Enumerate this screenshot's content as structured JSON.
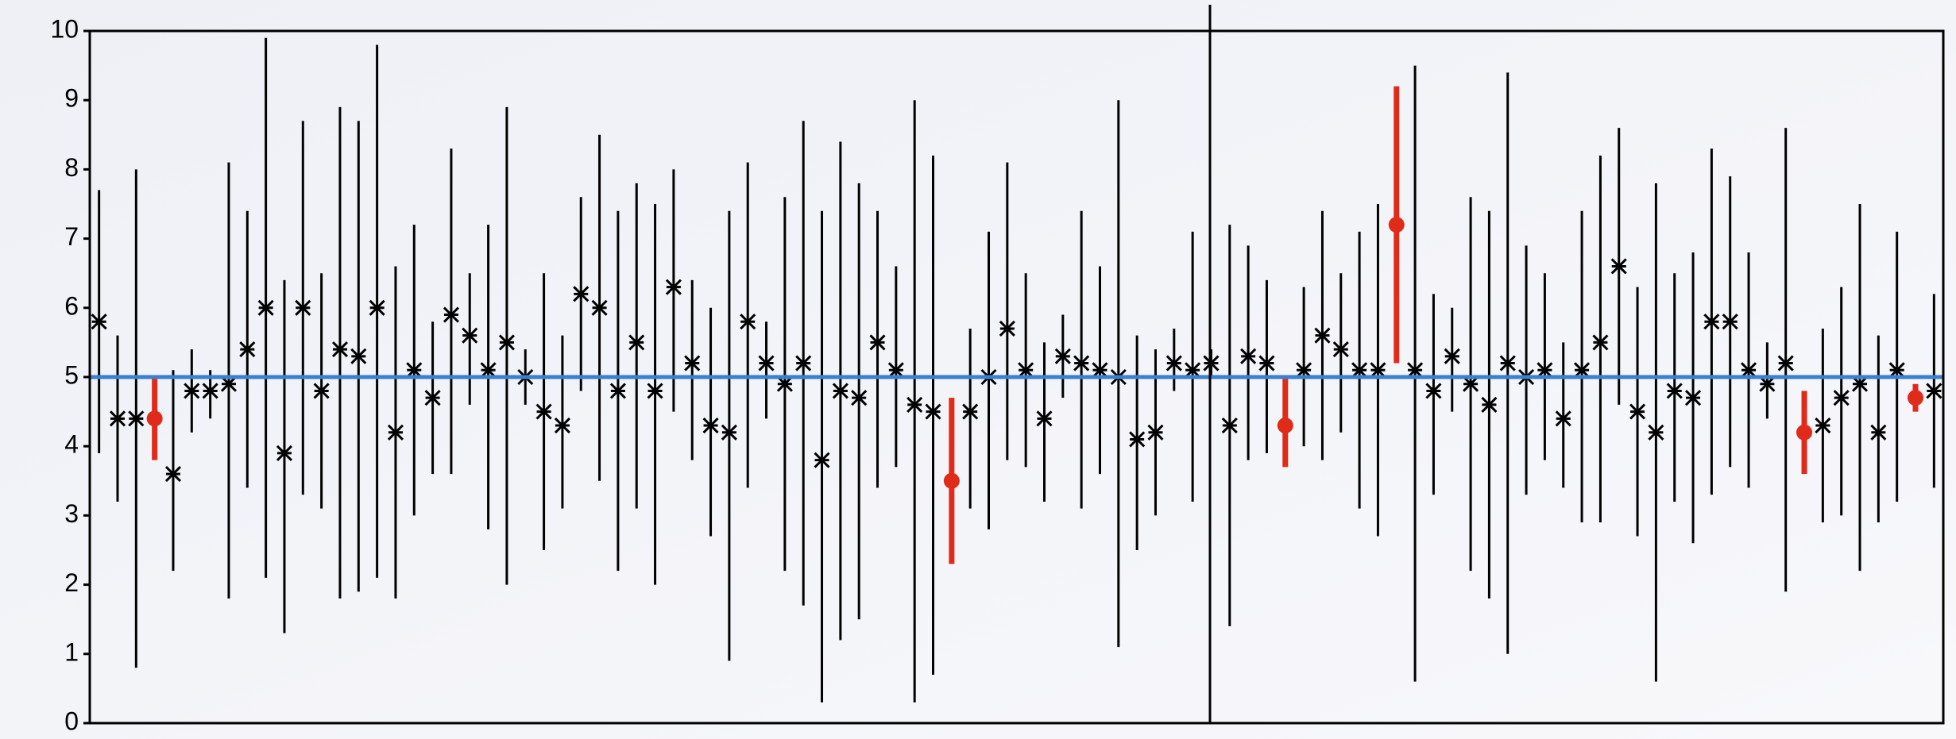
{
  "chart_data": {
    "type": "errorbar",
    "ylim": [
      0,
      10
    ],
    "yticks": [
      0,
      1,
      2,
      3,
      4,
      5,
      6,
      7,
      8,
      9,
      10
    ],
    "reference_line": {
      "value": 5,
      "color": "#3a7fd0"
    },
    "series": [
      {
        "color": "#000000",
        "values": [
          5.8,
          4.4,
          4.4,
          4.4,
          3.6,
          4.8,
          4.8,
          4.9,
          5.4,
          6.0,
          3.9,
          6.0,
          4.8,
          5.4,
          5.3,
          6.0,
          4.2,
          5.1,
          4.7,
          5.9,
          5.6,
          5.1,
          5.5,
          5.0,
          4.5,
          4.3,
          6.2,
          6.0,
          4.8,
          5.5,
          4.8,
          6.3,
          5.2,
          4.3,
          4.2,
          5.8,
          5.2,
          4.9,
          5.2,
          3.8,
          4.8,
          4.7,
          5.5,
          5.1,
          4.6,
          4.5,
          3.5,
          4.5,
          5.0,
          5.7,
          5.1,
          4.4,
          5.3,
          5.2,
          5.1,
          5.0,
          4.1,
          4.2,
          5.2,
          5.1,
          5.2,
          4.3,
          5.3,
          5.2,
          4.3,
          5.1,
          5.6,
          5.4,
          5.1,
          5.1,
          7.2,
          5.1,
          4.8,
          5.3,
          4.9,
          4.6,
          5.2,
          5.0,
          5.1,
          4.4,
          5.1,
          5.5,
          6.6,
          4.5,
          4.2,
          4.8,
          4.7,
          5.8,
          5.8,
          5.1,
          4.9,
          5.2,
          4.2,
          4.3,
          4.7,
          4.9,
          4.2,
          5.1,
          4.7,
          4.8
        ],
        "lower": [
          3.9,
          3.2,
          0.8,
          3.8,
          2.2,
          4.2,
          4.4,
          1.8,
          3.4,
          2.1,
          1.3,
          3.3,
          3.1,
          1.8,
          1.9,
          2.1,
          1.8,
          3.0,
          3.6,
          3.6,
          4.6,
          2.8,
          2.0,
          4.6,
          2.5,
          3.1,
          4.8,
          3.5,
          2.2,
          3.1,
          2.0,
          4.5,
          3.8,
          2.7,
          0.9,
          3.4,
          4.4,
          2.2,
          1.7,
          0.3,
          1.2,
          1.5,
          3.4,
          3.7,
          0.3,
          0.7,
          2.3,
          3.1,
          2.8,
          3.8,
          3.7,
          3.2,
          4.7,
          3.1,
          3.6,
          1.1,
          2.5,
          3.0,
          4.8,
          3.2,
          5.0,
          1.4,
          3.8,
          3.9,
          3.7,
          4.0,
          3.8,
          4.2,
          3.1,
          2.7,
          5.2,
          0.6,
          3.3,
          4.5,
          2.2,
          1.8,
          1.0,
          3.3,
          3.8,
          3.4,
          2.9,
          2.9,
          4.6,
          2.7,
          0.6,
          3.2,
          2.6,
          3.3,
          3.7,
          3.4,
          4.4,
          1.9,
          3.6,
          2.9,
          3.0,
          2.2,
          2.9,
          3.2,
          4.5,
          3.4
        ],
        "upper": [
          7.7,
          5.6,
          8.0,
          5.0,
          5.1,
          5.4,
          5.1,
          8.1,
          7.4,
          9.9,
          6.4,
          8.7,
          6.5,
          8.9,
          8.7,
          9.8,
          6.6,
          7.2,
          5.8,
          8.3,
          6.5,
          7.2,
          8.9,
          5.4,
          6.5,
          5.6,
          7.6,
          8.5,
          7.4,
          7.8,
          7.5,
          8.0,
          6.4,
          6.0,
          7.4,
          8.1,
          5.8,
          7.6,
          8.7,
          7.4,
          8.4,
          7.8,
          7.4,
          6.6,
          9.0,
          8.2,
          4.7,
          5.7,
          7.1,
          8.1,
          6.5,
          5.5,
          5.9,
          7.4,
          6.6,
          9.0,
          5.6,
          5.4,
          5.7,
          7.1,
          5.4,
          7.2,
          6.9,
          6.4,
          5.0,
          6.3,
          7.4,
          6.5,
          7.1,
          7.5,
          9.2,
          9.5,
          6.2,
          6.0,
          7.6,
          7.4,
          9.4,
          6.9,
          6.5,
          5.5,
          7.4,
          8.2,
          8.6,
          6.3,
          7.8,
          6.5,
          6.8,
          8.3,
          7.9,
          6.8,
          5.5,
          8.6,
          4.8,
          5.7,
          6.3,
          7.5,
          5.6,
          7.1,
          4.9,
          6.2
        ],
        "colors": [
          "#000000",
          "#000000",
          "#000000",
          "#e02a1a",
          "#000000",
          "#000000",
          "#000000",
          "#000000",
          "#000000",
          "#000000",
          "#000000",
          "#000000",
          "#000000",
          "#000000",
          "#000000",
          "#000000",
          "#000000",
          "#000000",
          "#000000",
          "#000000",
          "#000000",
          "#000000",
          "#000000",
          "#000000",
          "#000000",
          "#000000",
          "#000000",
          "#000000",
          "#000000",
          "#000000",
          "#000000",
          "#000000",
          "#000000",
          "#000000",
          "#000000",
          "#000000",
          "#000000",
          "#000000",
          "#000000",
          "#000000",
          "#000000",
          "#000000",
          "#000000",
          "#000000",
          "#000000",
          "#000000",
          "#e02a1a",
          "#000000",
          "#000000",
          "#000000",
          "#000000",
          "#000000",
          "#000000",
          "#000000",
          "#000000",
          "#000000",
          "#000000",
          "#000000",
          "#000000",
          "#000000",
          "#000000",
          "#000000",
          "#000000",
          "#000000",
          "#e02a1a",
          "#000000",
          "#000000",
          "#000000",
          "#000000",
          "#000000",
          "#e02a1a",
          "#000000",
          "#000000",
          "#000000",
          "#000000",
          "#000000",
          "#000000",
          "#000000",
          "#000000",
          "#000000",
          "#000000",
          "#000000",
          "#000000",
          "#000000",
          "#000000",
          "#000000",
          "#000000",
          "#000000",
          "#000000",
          "#000000",
          "#000000",
          "#000000",
          "#e02a1a",
          "#000000",
          "#000000",
          "#000000",
          "#000000",
          "#000000",
          "#e02a1a",
          "#000000"
        ]
      }
    ]
  }
}
